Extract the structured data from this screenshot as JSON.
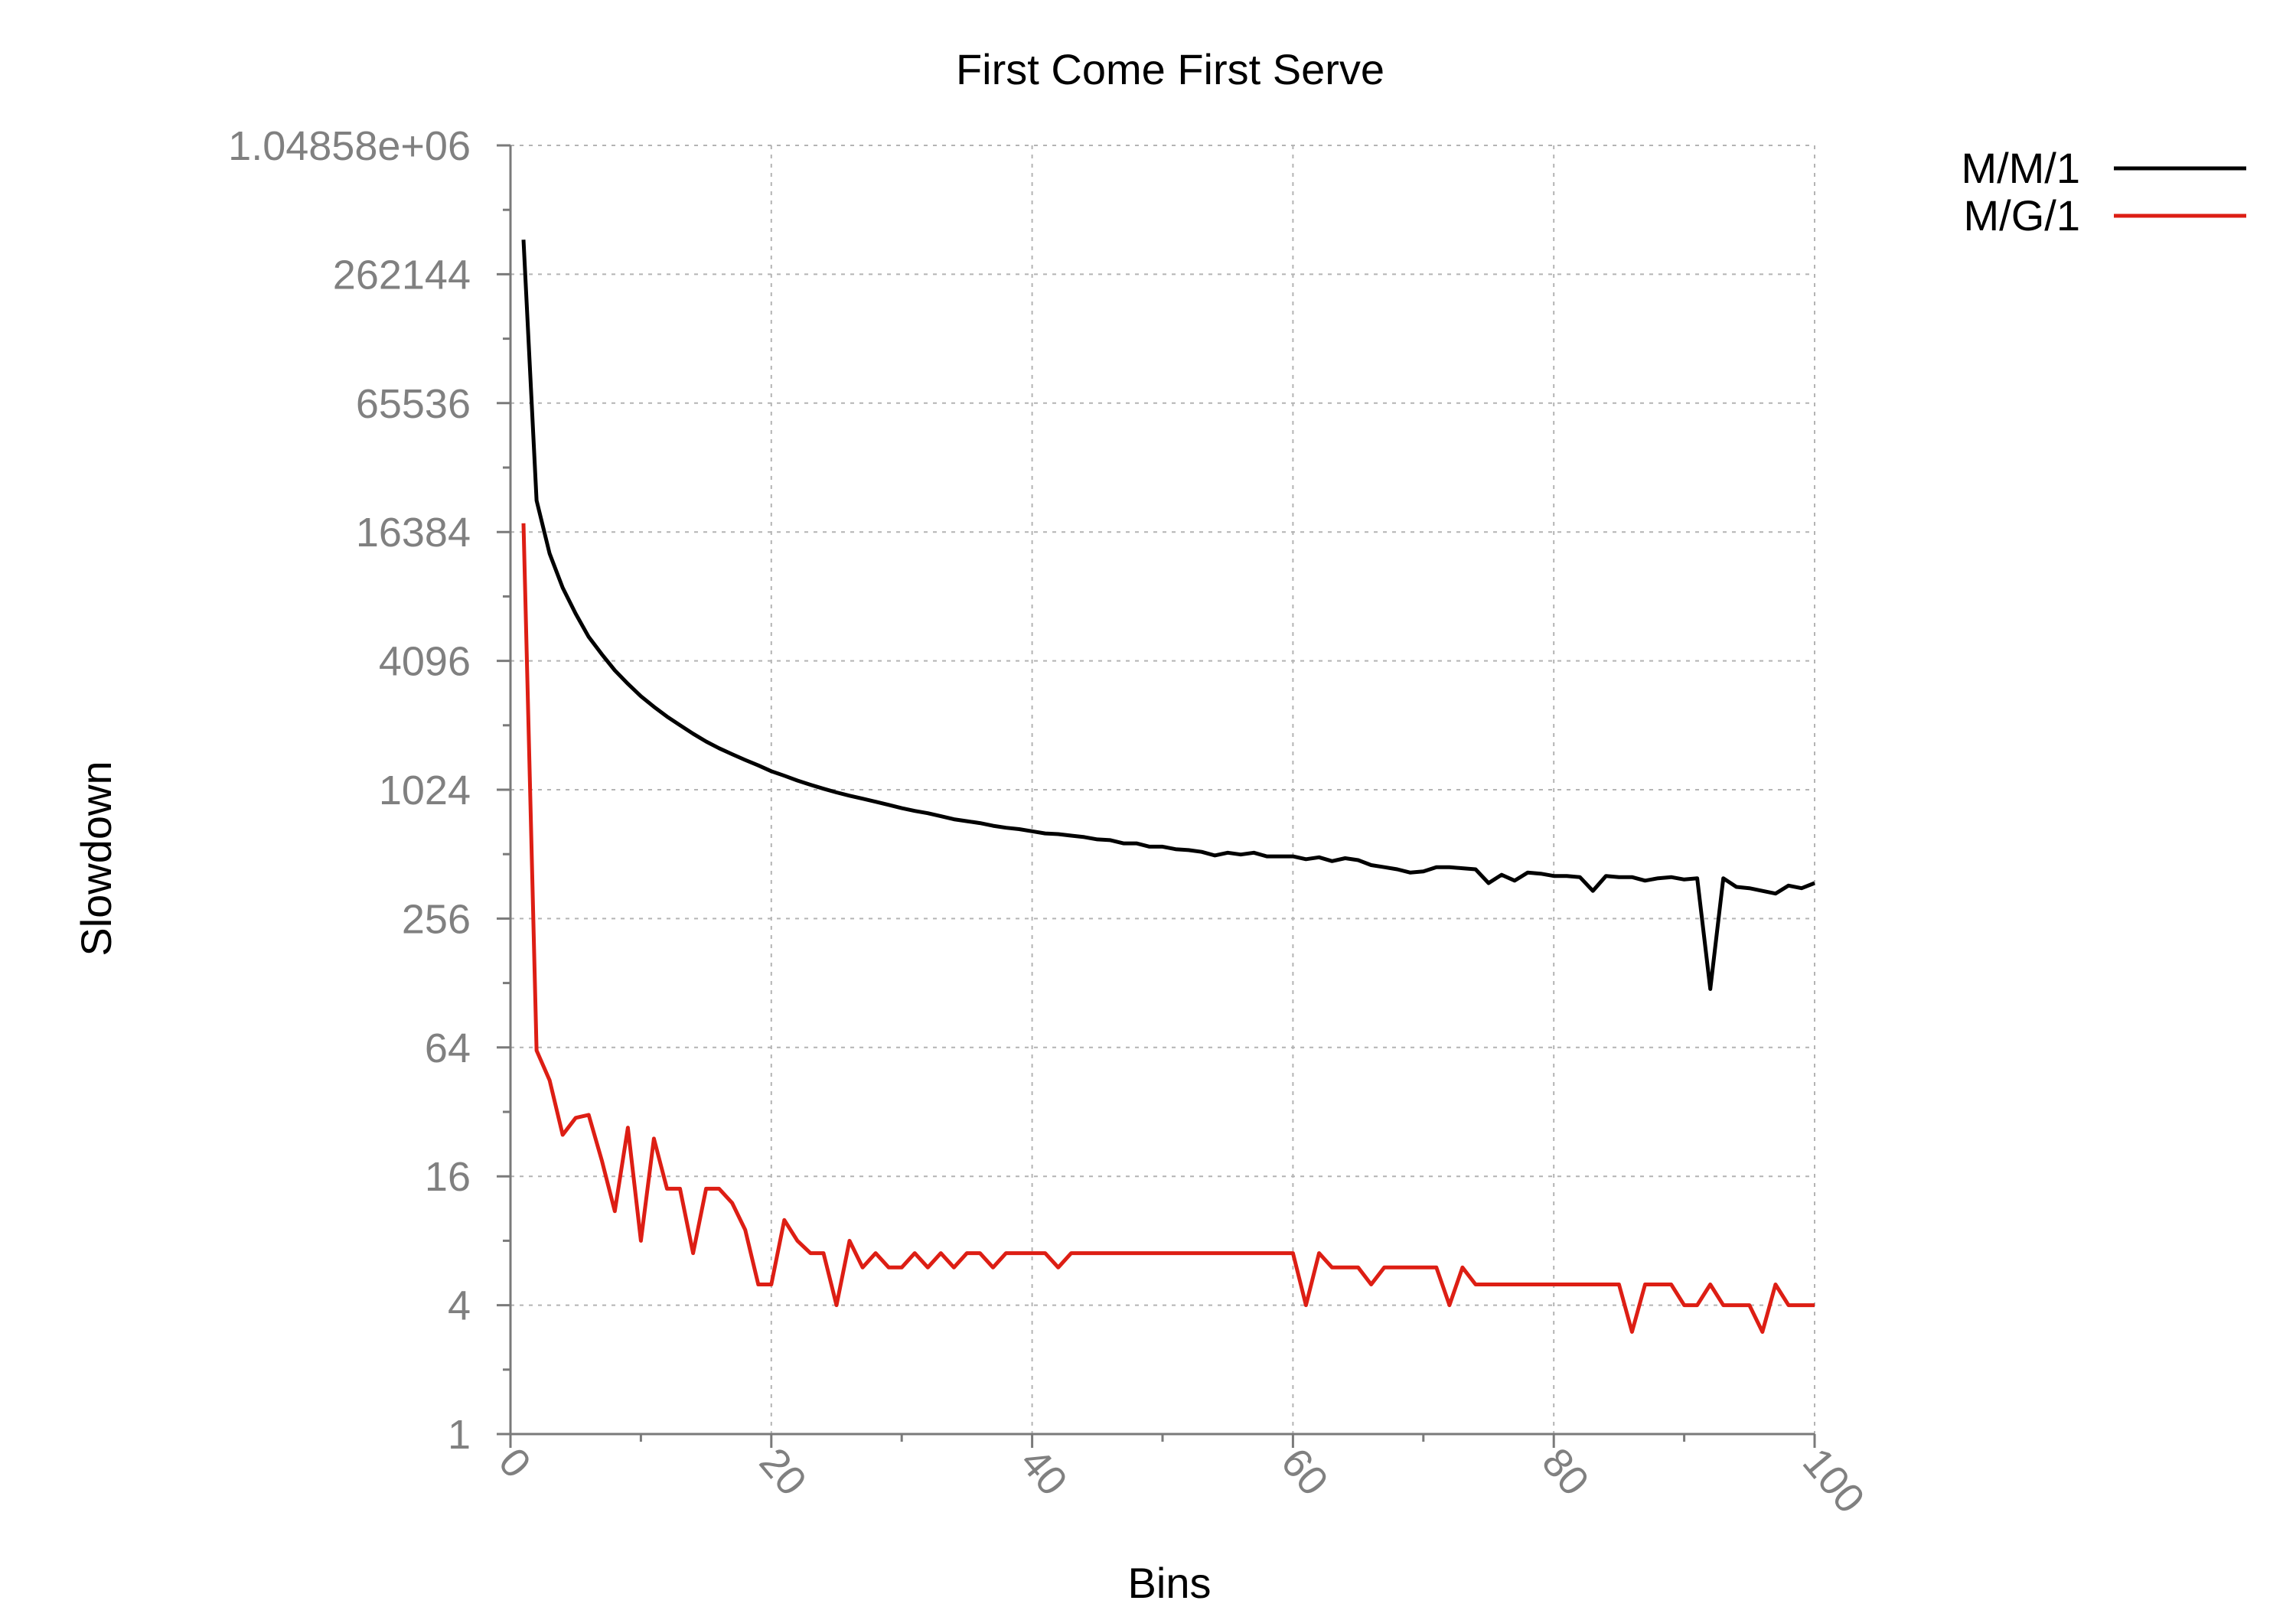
{
  "chart_data": {
    "type": "line",
    "title": "First Come First Serve",
    "xlabel": "Bins",
    "ylabel": "Slowdown",
    "xlim": [
      0,
      100
    ],
    "ylim": [
      1,
      1048576
    ],
    "yscale": "log2",
    "grid": true,
    "legend_position": "top-right, outside plot",
    "x_ticks": [
      "0",
      "20",
      "40",
      "60",
      "80",
      "100"
    ],
    "y_ticks": [
      "1",
      "4",
      "16",
      "64",
      "256",
      "1024",
      "4096",
      "16384",
      "65536",
      "262144",
      "1.04858e+06"
    ],
    "series": [
      {
        "name": "M/M/1",
        "color": "#000000",
        "x": [
          1,
          2,
          3,
          4,
          5,
          6,
          7,
          8,
          9,
          10,
          11,
          12,
          13,
          14,
          15,
          16,
          17,
          18,
          19,
          20,
          21,
          22,
          23,
          24,
          25,
          26,
          27,
          28,
          29,
          30,
          31,
          32,
          33,
          34,
          35,
          36,
          37,
          38,
          39,
          40,
          41,
          42,
          43,
          44,
          45,
          46,
          47,
          48,
          49,
          50,
          51,
          52,
          53,
          54,
          55,
          56,
          57,
          58,
          59,
          60,
          61,
          62,
          63,
          64,
          65,
          66,
          67,
          68,
          69,
          70,
          71,
          72,
          73,
          74,
          75,
          76,
          77,
          78,
          79,
          80,
          81,
          82,
          83,
          84,
          85,
          86,
          87,
          88,
          89,
          90,
          91,
          92,
          93,
          94,
          95,
          96,
          97,
          98,
          99,
          100
        ],
        "y": [
          380000,
          23000,
          13000,
          9000,
          6800,
          5300,
          4400,
          3700,
          3200,
          2800,
          2500,
          2250,
          2050,
          1870,
          1720,
          1600,
          1500,
          1410,
          1330,
          1250,
          1190,
          1130,
          1080,
          1035,
          995,
          960,
          930,
          900,
          870,
          840,
          815,
          795,
          770,
          745,
          730,
          715,
          695,
          680,
          670,
          655,
          640,
          635,
          625,
          615,
          600,
          595,
          575,
          575,
          555,
          555,
          540,
          535,
          525,
          505,
          520,
          510,
          520,
          500,
          500,
          500,
          485,
          495,
          475,
          490,
          480,
          455,
          445,
          435,
          420,
          425,
          445,
          445,
          440,
          435,
          375,
          410,
          385,
          420,
          415,
          405,
          405,
          400,
          345,
          405,
          400,
          400,
          385,
          395,
          400,
          390,
          395,
          120,
          395,
          360,
          355,
          345,
          335,
          365,
          355,
          375
        ]
      },
      {
        "name": "M/G/1",
        "color": "#dd1e14",
        "x": [
          1,
          2,
          3,
          4,
          5,
          6,
          7,
          8,
          9,
          10,
          11,
          12,
          13,
          14,
          15,
          16,
          17,
          18,
          19,
          20,
          21,
          22,
          23,
          24,
          25,
          26,
          27,
          28,
          29,
          30,
          31,
          32,
          33,
          34,
          35,
          36,
          37,
          38,
          39,
          40,
          41,
          42,
          43,
          44,
          45,
          46,
          47,
          48,
          49,
          50,
          51,
          52,
          53,
          54,
          55,
          56,
          57,
          58,
          59,
          60,
          61,
          62,
          63,
          64,
          65,
          66,
          67,
          68,
          69,
          70,
          71,
          72,
          73,
          74,
          75,
          76,
          77,
          78,
          79,
          80,
          81,
          82,
          83,
          84,
          85,
          86,
          87,
          88,
          89,
          90,
          91,
          92,
          93,
          94,
          95,
          96,
          97,
          98,
          99,
          100
        ],
        "y": [
          18000,
          62,
          45,
          25,
          30,
          31,
          19,
          11,
          27,
          8,
          24,
          14,
          14,
          7,
          14,
          14,
          12,
          9,
          5,
          5,
          10,
          8,
          7,
          7,
          4,
          8,
          6,
          7,
          6,
          6,
          7,
          6,
          7,
          6,
          7,
          7,
          6,
          7,
          7,
          7,
          7,
          6,
          7,
          7,
          7,
          7,
          7,
          7,
          7,
          7,
          7,
          7,
          7,
          7,
          7,
          7,
          7,
          7,
          7,
          7,
          4,
          7,
          6,
          6,
          6,
          5,
          6,
          6,
          6,
          6,
          6,
          4,
          6,
          5,
          5,
          5,
          5,
          5,
          5,
          5,
          5,
          5,
          5,
          5,
          5,
          3,
          5,
          5,
          5,
          4,
          4,
          5,
          4,
          4,
          4,
          3,
          5,
          4,
          4,
          4
        ]
      }
    ]
  }
}
